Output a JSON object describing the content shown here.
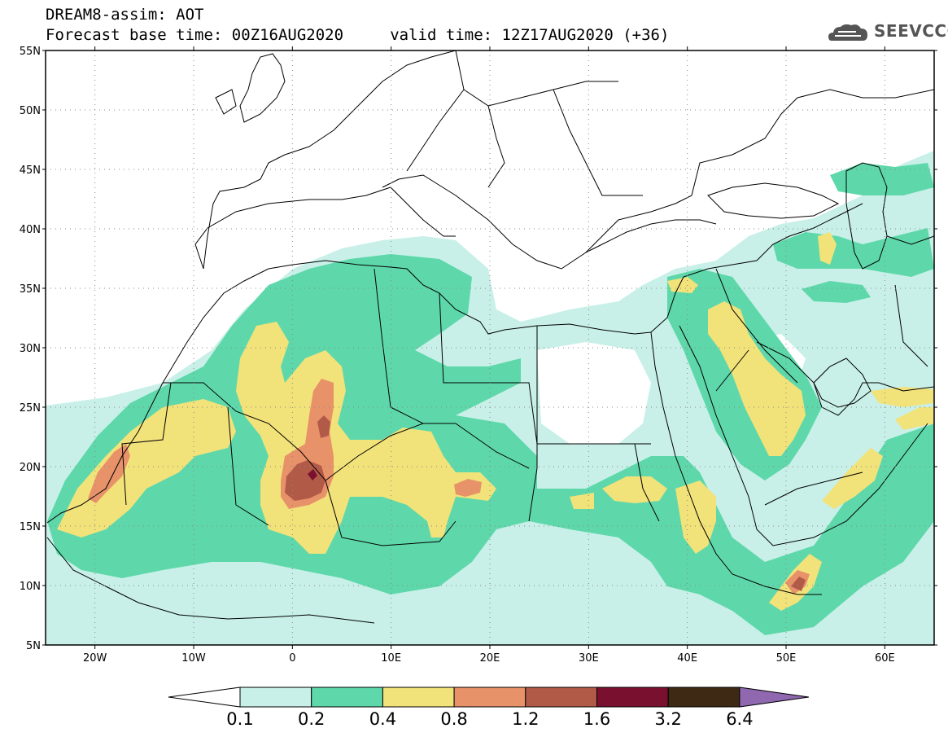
{
  "header": {
    "title_line1": "DREAM8-assim: AOT",
    "title_line2": "Forecast base time: 00Z16AUG2020     valid time: 12Z17AUG2020 (+36)"
  },
  "logo": {
    "text": "SEEVCCC",
    "icon": "cloud-icon"
  },
  "map": {
    "lon_range": [
      -25,
      65
    ],
    "lat_range": [
      5,
      55
    ],
    "lat_ticks": [
      {
        "value": 55,
        "label": "55N"
      },
      {
        "value": 50,
        "label": "50N"
      },
      {
        "value": 45,
        "label": "45N"
      },
      {
        "value": 40,
        "label": "40N"
      },
      {
        "value": 35,
        "label": "35N"
      },
      {
        "value": 30,
        "label": "30N"
      },
      {
        "value": 25,
        "label": "25N"
      },
      {
        "value": 20,
        "label": "20N"
      },
      {
        "value": 15,
        "label": "15N"
      },
      {
        "value": 10,
        "label": "10N"
      },
      {
        "value": 5,
        "label": "5N"
      }
    ],
    "lon_ticks": [
      {
        "value": -20,
        "label": "20W"
      },
      {
        "value": -10,
        "label": "10W"
      },
      {
        "value": 0,
        "label": "0"
      },
      {
        "value": 10,
        "label": "10E"
      },
      {
        "value": 20,
        "label": "20E"
      },
      {
        "value": 30,
        "label": "30E"
      },
      {
        "value": 40,
        "label": "40E"
      },
      {
        "value": 50,
        "label": "50E"
      },
      {
        "value": 60,
        "label": "60E"
      }
    ],
    "grid": "dotted",
    "levels": [
      {
        "min": 0.1,
        "color": "#c8f0e8"
      },
      {
        "min": 0.2,
        "color": "#5ed8aa"
      },
      {
        "min": 0.4,
        "color": "#f2e27a"
      },
      {
        "min": 0.8,
        "color": "#e8926a"
      },
      {
        "min": 1.2,
        "color": "#b25a48"
      },
      {
        "min": 1.6,
        "color": "#7a1030"
      }
    ]
  },
  "colorbar": {
    "bins": [
      {
        "color": "#c8f0e8"
      },
      {
        "color": "#5ed8aa"
      },
      {
        "color": "#f2e27a"
      },
      {
        "color": "#e8926a"
      },
      {
        "color": "#b25a48"
      },
      {
        "color": "#7a1030"
      },
      {
        "color": "#3e2a14"
      }
    ],
    "low_color": "#ffffff",
    "high_color": "#9068b0",
    "labels": [
      "0.1",
      "0.2",
      "0.4",
      "0.8",
      "1.2",
      "1.6",
      "3.2",
      "6.4"
    ]
  }
}
